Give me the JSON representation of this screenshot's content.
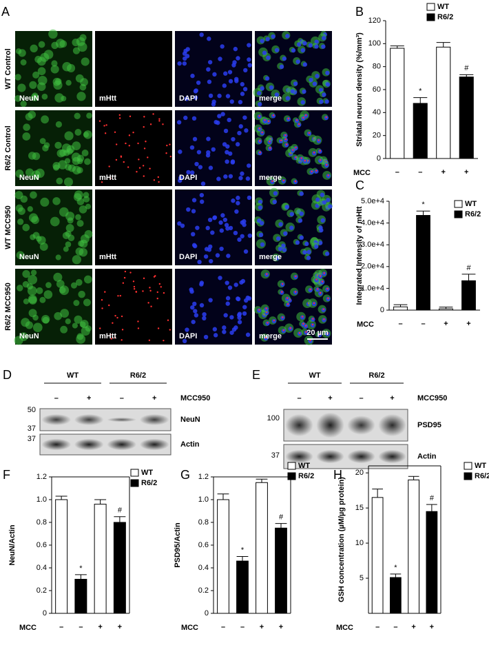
{
  "panel_a": {
    "label": "A",
    "rows": [
      "WT Control",
      "R6/2 Control",
      "WT MCC950",
      "R6/2 MCC950"
    ],
    "columns": [
      "NeuN",
      "mHtt",
      "DAPI",
      "merge"
    ],
    "scale_bar": "20 µm"
  },
  "blot_d": {
    "label": "D",
    "groups": [
      "WT",
      "R6/2"
    ],
    "lanes": [
      "–",
      "+",
      "–",
      "+"
    ],
    "treatment": "MCC950",
    "size_markers": [
      "50",
      "37",
      "37"
    ],
    "rows": [
      "NeuN",
      "Actin"
    ]
  },
  "blot_e": {
    "label": "E",
    "groups": [
      "WT",
      "R6/2"
    ],
    "lanes": [
      "–",
      "+",
      "–",
      "+"
    ],
    "treatment": "MCC950",
    "size_markers": [
      "100",
      "37"
    ],
    "rows": [
      "PSD95",
      "Actin"
    ]
  },
  "chart_data": [
    {
      "type": "bar",
      "panel": "B",
      "y_label": "Striatal neuron density (%/mm³)",
      "x_label": "MCC",
      "categories": [
        "–",
        "–",
        "+",
        "+"
      ],
      "series": [
        {
          "name": "WT",
          "color": "#ffffff",
          "values": [
            96,
            null,
            97,
            null
          ],
          "errors": [
            2,
            null,
            4,
            null
          ]
        },
        {
          "name": "R6/2",
          "color": "#000000",
          "values": [
            null,
            48,
            null,
            71
          ],
          "errors": [
            null,
            5,
            null,
            2
          ]
        }
      ],
      "markers": [
        null,
        "*",
        null,
        "#"
      ],
      "ylim": [
        0,
        120
      ],
      "yticks": [
        0,
        20,
        40,
        60,
        80,
        100,
        120
      ],
      "frame": false
    },
    {
      "type": "bar",
      "panel": "C",
      "y_label": "Integrated Intensity of mHtt",
      "x_label": "MCC",
      "categories": [
        "–",
        "–",
        "+",
        "+"
      ],
      "series": [
        {
          "name": "WT",
          "color": "#ffffff",
          "values": [
            1500,
            null,
            600,
            null
          ],
          "errors": [
            1000,
            null,
            800,
            null
          ]
        },
        {
          "name": "R6/2",
          "color": "#000000",
          "values": [
            null,
            43500,
            null,
            13500
          ],
          "errors": [
            null,
            2000,
            null,
            3000
          ]
        }
      ],
      "markers": [
        null,
        "*",
        null,
        "#"
      ],
      "ylim": [
        0,
        50000
      ],
      "yticks": [
        0,
        {
          "value": 10000,
          "label": "1.0e+4"
        },
        {
          "value": 20000,
          "label": "2.0e+4"
        },
        {
          "value": 30000,
          "label": "3.0e+4"
        },
        {
          "value": 40000,
          "label": "4.0e+4"
        },
        {
          "value": 50000,
          "label": "5.0e+4"
        }
      ],
      "frame": false
    },
    {
      "type": "bar",
      "panel": "F",
      "y_label": "NeuN/Actin",
      "x_label": "MCC",
      "categories": [
        "–",
        "–",
        "+",
        "+"
      ],
      "series": [
        {
          "name": "WT",
          "color": "#ffffff",
          "values": [
            1.0,
            null,
            0.96,
            null
          ],
          "errors": [
            0.03,
            null,
            0.04,
            null
          ]
        },
        {
          "name": "R6/2",
          "color": "#000000",
          "values": [
            null,
            0.3,
            null,
            0.8
          ],
          "errors": [
            null,
            0.04,
            null,
            0.05
          ]
        }
      ],
      "markers": [
        null,
        "*",
        null,
        "#"
      ],
      "ylim": [
        0,
        1.2
      ],
      "yticks": [
        0,
        0.2,
        0.4,
        0.6,
        0.8,
        {
          "value": 1.0,
          "label": "1.0"
        },
        1.2
      ],
      "frame": true
    },
    {
      "type": "bar",
      "panel": "G",
      "y_label": "PSD95/Actin",
      "x_label": "MCC",
      "categories": [
        "–",
        "–",
        "+",
        "+"
      ],
      "series": [
        {
          "name": "WT",
          "color": "#ffffff",
          "values": [
            1.0,
            null,
            1.15,
            null
          ],
          "errors": [
            0.05,
            null,
            0.03,
            null
          ]
        },
        {
          "name": "R6/2",
          "color": "#000000",
          "values": [
            null,
            0.46,
            null,
            0.75
          ],
          "errors": [
            null,
            0.04,
            null,
            0.04
          ]
        }
      ],
      "markers": [
        null,
        "*",
        null,
        "#"
      ],
      "ylim": [
        0,
        1.2
      ],
      "yticks": [
        0,
        0.2,
        0.4,
        0.6,
        0.8,
        {
          "value": 1.0,
          "label": "1.0"
        },
        1.2
      ],
      "frame": true
    },
    {
      "type": "bar",
      "panel": "H",
      "y_label": "GSH concentration (µM/µg protein)",
      "x_label": "MCC",
      "categories": [
        "–",
        "–",
        "+",
        "+"
      ],
      "series": [
        {
          "name": "WT",
          "color": "#ffffff",
          "values": [
            16.5,
            null,
            19,
            null
          ],
          "errors": [
            1.2,
            null,
            0.5,
            null
          ]
        },
        {
          "name": "R6/2",
          "color": "#000000",
          "values": [
            null,
            5.1,
            null,
            14.5
          ],
          "errors": [
            null,
            0.5,
            null,
            1
          ]
        }
      ],
      "markers": [
        null,
        "*",
        null,
        "#"
      ],
      "ylim": [
        0,
        21
      ],
      "yticks": [
        5,
        10,
        15,
        20
      ],
      "frame": true
    }
  ]
}
